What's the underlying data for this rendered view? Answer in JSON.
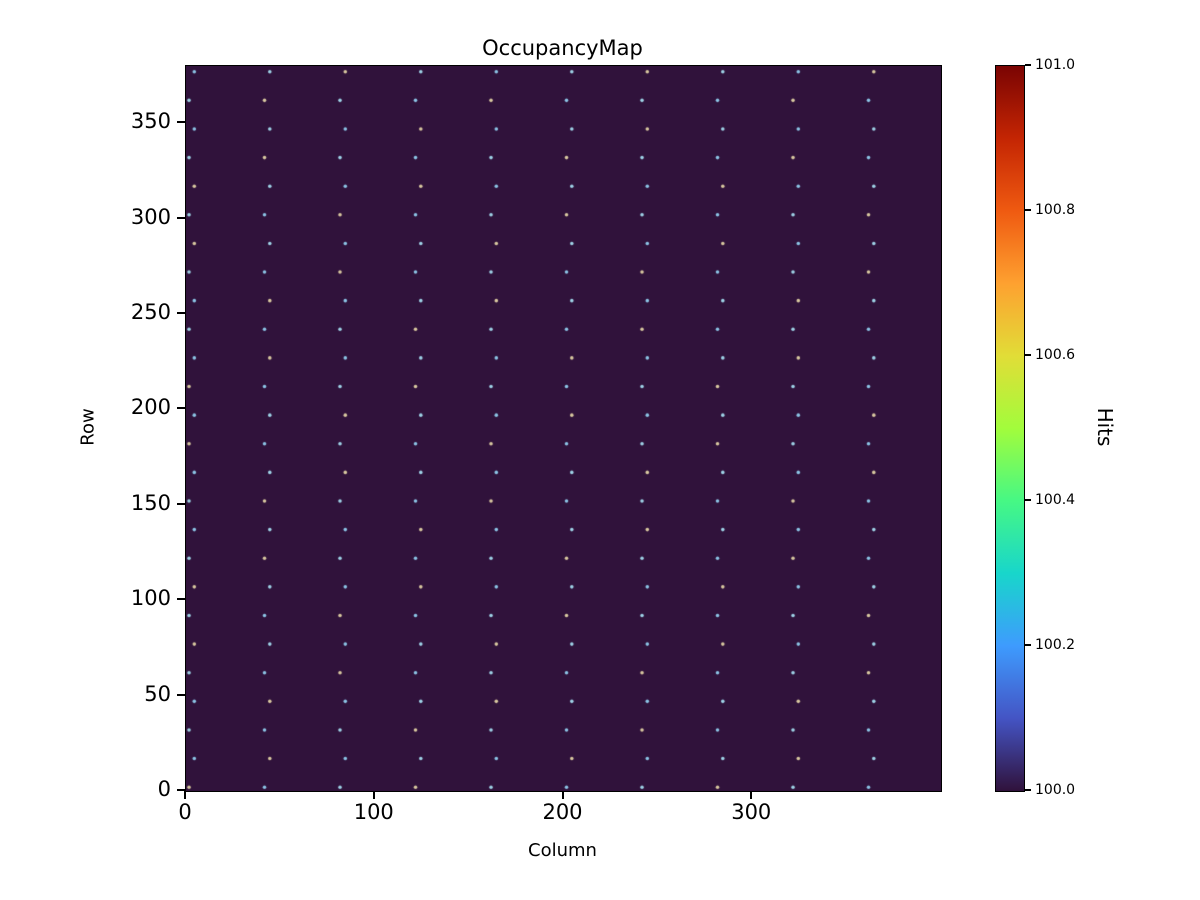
{
  "figure": {
    "background": "#ffffff"
  },
  "chart_data": {
    "type": "heatmap",
    "title": "OccupancyMap",
    "xlabel": "Column",
    "ylabel": "Row",
    "xlim": [
      0,
      400
    ],
    "ylim": [
      0,
      380
    ],
    "x_ticks": [
      0,
      100,
      200,
      300
    ],
    "y_ticks": [
      0,
      50,
      100,
      150,
      200,
      250,
      300,
      350
    ],
    "background_value": 100.0,
    "background_color": "#30123b",
    "hot_pixel_pattern": {
      "columns": [
        3,
        43,
        83,
        123,
        163,
        203,
        243,
        283,
        323,
        363
      ],
      "row_start": 2,
      "row_step": 15,
      "row_count": 26,
      "approx_value": 100.05
    },
    "dot_colors": [
      "#9fd4e8",
      "#8cc5e6",
      "#d9c9a0"
    ],
    "colorbar": {
      "label": "Hits",
      "min": 100.0,
      "max": 101.0,
      "tick_labels": [
        "100.0",
        "100.2",
        "100.4",
        "100.6",
        "100.8",
        "101.0"
      ],
      "tick_values": [
        100.0,
        100.2,
        100.4,
        100.6,
        100.8,
        101.0
      ],
      "colormap": "turbo",
      "gradient": [
        {
          "pos": 0.0,
          "color": "#30123b"
        },
        {
          "pos": 0.1,
          "color": "#4454c4"
        },
        {
          "pos": 0.2,
          "color": "#3e9bfe"
        },
        {
          "pos": 0.3,
          "color": "#18d6cb"
        },
        {
          "pos": 0.4,
          "color": "#46f884"
        },
        {
          "pos": 0.5,
          "color": "#a2fc3c"
        },
        {
          "pos": 0.6,
          "color": "#e1dd37"
        },
        {
          "pos": 0.7,
          "color": "#fea130"
        },
        {
          "pos": 0.8,
          "color": "#ef5a11"
        },
        {
          "pos": 0.9,
          "color": "#c42503"
        },
        {
          "pos": 1.0,
          "color": "#7a0403"
        }
      ]
    }
  }
}
